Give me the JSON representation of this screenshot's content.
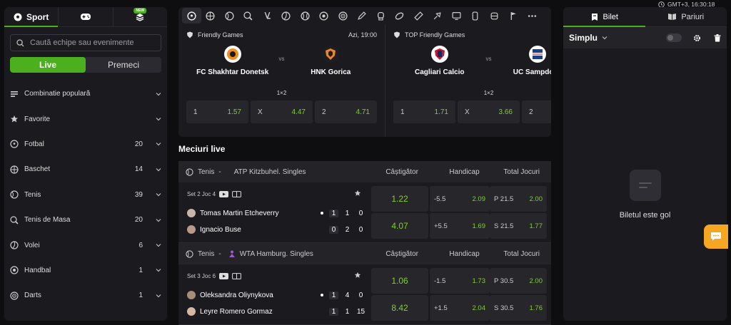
{
  "sidebar": {
    "tabs": [
      {
        "label": "Sport",
        "icon": "soccer-ball-icon"
      },
      {
        "label": "",
        "icon": "gamepad-icon"
      },
      {
        "label": "",
        "icon": "layers-icon",
        "badge": "NEW"
      }
    ],
    "search_placeholder": "Caută echipe sau evenimente",
    "toggle": {
      "live": "Live",
      "prematch": "Premeci"
    },
    "items": [
      {
        "label": "Combinatie populară",
        "count": "",
        "icon": "popular-combo-icon"
      },
      {
        "label": "Favorite",
        "count": "",
        "icon": "star-icon"
      },
      {
        "label": "Fotbal",
        "count": "20",
        "icon": "football-icon"
      },
      {
        "label": "Baschet",
        "count": "14",
        "icon": "basketball-icon"
      },
      {
        "label": "Tenis",
        "count": "39",
        "icon": "tennis-icon"
      },
      {
        "label": "Tenis de Masa",
        "count": "20",
        "icon": "table-tennis-icon"
      },
      {
        "label": "Volei",
        "count": "6",
        "icon": "volleyball-icon"
      },
      {
        "label": "Handbal",
        "count": "1",
        "icon": "handball-icon"
      },
      {
        "label": "Darts",
        "count": "1",
        "icon": "darts-icon"
      }
    ]
  },
  "featured": [
    {
      "league": "Friendly Games",
      "time": "Azi, 19:00",
      "home": "FC Shakhtar Donetsk",
      "away": "HNK Gorica",
      "vs": "vs",
      "market": "1×2",
      "odds": [
        {
          "k": "1",
          "v": "1.57"
        },
        {
          "k": "X",
          "v": "4.47"
        },
        {
          "k": "2",
          "v": "4.71"
        }
      ]
    },
    {
      "league": "TOP Friendly Games",
      "time": "",
      "home": "Cagliari Calcio",
      "away": "UC Sampdoria",
      "vs": "vs",
      "market": "1×2",
      "odds": [
        {
          "k": "1",
          "v": "1.71"
        },
        {
          "k": "X",
          "v": "3.66"
        },
        {
          "k": "2",
          "v": ""
        }
      ]
    }
  ],
  "live_title": "Meciuri live",
  "leagues": [
    {
      "sport": "Tenis",
      "sep": "-",
      "name": "ATP Kitzbuhel. Singles",
      "cols": [
        "Câștigător",
        "Handicap",
        "Total Jocuri"
      ],
      "match": {
        "meta": "Set 2 Joc 4",
        "p1": {
          "name": "Tomas Martin Etcheverry",
          "serving": true,
          "s": [
            "1",
            "1",
            "0"
          ]
        },
        "p2": {
          "name": "Ignacio Buse",
          "serving": false,
          "s": [
            "0",
            "2",
            "0"
          ]
        },
        "win": [
          "1.22",
          "4.07"
        ],
        "hcp": [
          {
            "k": "-5.5",
            "v": "2.09"
          },
          {
            "k": "+5.5",
            "v": "1.69"
          }
        ],
        "tot": [
          {
            "k": "P 21.5",
            "v": "2.00"
          },
          {
            "k": "S 21.5",
            "v": "1.77"
          }
        ]
      }
    },
    {
      "sport": "Tenis",
      "sep": "-",
      "name": "WTA Hamburg. Singles",
      "cols": [
        "Câștigător",
        "Handicap",
        "Total Jocuri"
      ],
      "match": {
        "meta": "Set 3 Joc 6",
        "p1": {
          "name": "Oleksandra Oliynykova",
          "serving": true,
          "s": [
            "1",
            "4",
            "0"
          ]
        },
        "p2": {
          "name": "Leyre Romero Gormaz",
          "serving": false,
          "s": [
            "1",
            "1",
            "15"
          ]
        },
        "win": [
          "1.06",
          "8.42"
        ],
        "hcp": [
          {
            "k": "-1.5",
            "v": "1.73"
          },
          {
            "k": "+1.5",
            "v": "2.04"
          }
        ],
        "tot": [
          {
            "k": "P 30.5",
            "v": "2.00"
          },
          {
            "k": "S 30.5",
            "v": "1.76"
          }
        ]
      }
    }
  ],
  "betslip": {
    "clock": "GMT+3,  16:30:18",
    "tabs": [
      "Bilet",
      "Pariuri"
    ],
    "mode": "Simplu",
    "empty": "Biletul este gol"
  },
  "colors": {
    "accent": "#4caf1d",
    "odds": "#7ed321",
    "chat": "#f5a623"
  }
}
